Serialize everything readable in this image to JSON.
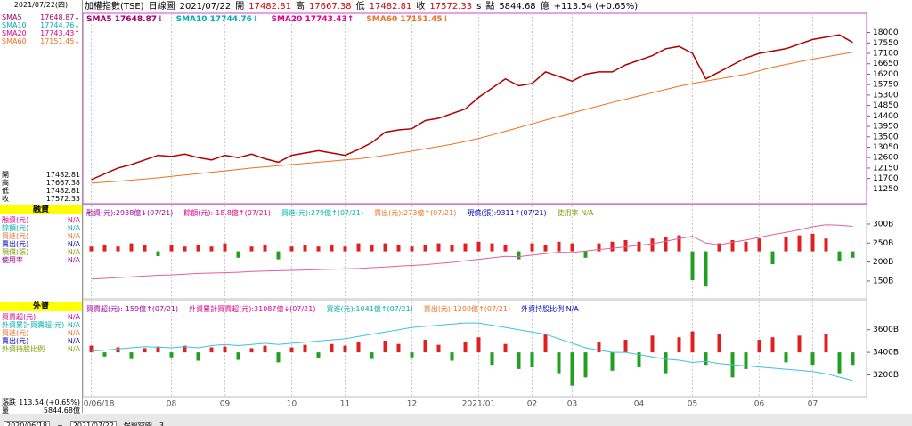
{
  "top_date": "2021/07/22(四)",
  "header": [
    {
      "text": "加權指數(TSE)",
      "color": "#000"
    },
    {
      "text": "日線圖",
      "color": "#000"
    },
    {
      "text": "2021/07/22",
      "color": "#000"
    },
    {
      "text": "開",
      "color": "#000"
    },
    {
      "text": "17482.81",
      "color": "#d00000"
    },
    {
      "text": "高",
      "color": "#000"
    },
    {
      "text": "17667.38",
      "color": "#d00000"
    },
    {
      "text": "低",
      "color": "#000"
    },
    {
      "text": "17482.81",
      "color": "#d00000"
    },
    {
      "text": "收",
      "color": "#000"
    },
    {
      "text": "17572.33",
      "color": "#d00000"
    },
    {
      "text": "s",
      "color": "#000"
    },
    {
      "text": "點",
      "color": "#000"
    },
    {
      "text": "5844.68",
      "color": "#000"
    },
    {
      "text": "億",
      "color": "#000"
    },
    {
      "text": "+113.54 (+0.65%)",
      "color": "#000"
    }
  ],
  "legend": [
    {
      "text": "SMA5 17648.87↓",
      "color": "#a0006a"
    },
    {
      "text": "SMA10 17744.76↓",
      "color": "#00b0b0"
    },
    {
      "text": "SMA20 17743.43↑",
      "color": "#e0008a"
    },
    {
      "text": "SMA60 17151.45↓",
      "color": "#f07020"
    }
  ],
  "sidebar": {
    "sma": [
      {
        "name": "SMA5",
        "value": "17648.87↓",
        "color": "#a0006a"
      },
      {
        "name": "SMA10",
        "value": "17744.76↓",
        "color": "#00b0b0"
      },
      {
        "name": "SMA20",
        "value": "17743.43↑",
        "color": "#e0008a"
      },
      {
        "name": "SMA60",
        "value": "17151.45↓",
        "color": "#f07020"
      }
    ],
    "ohlc": [
      {
        "name": "開",
        "value": "17482.81"
      },
      {
        "name": "高",
        "value": "17667.38"
      },
      {
        "name": "低",
        "value": "17482.81"
      },
      {
        "name": "收",
        "value": "17572.33"
      }
    ],
    "margin_title": "融資",
    "margin_rows": [
      {
        "name": "融資(元)",
        "value": "N/A",
        "color": "#e0008a"
      },
      {
        "name": "餘額(元)",
        "value": "N/A",
        "color": "#00b0b0"
      },
      {
        "name": "買進(元)",
        "value": "N/A",
        "color": "#f07020"
      },
      {
        "name": "賣出(元)",
        "value": "N/A",
        "color": "#0000c0"
      },
      {
        "name": "現償(張)",
        "value": "N/A",
        "color": "#80a000"
      },
      {
        "name": "使用率",
        "value": "N/A",
        "color": "#a000a0"
      }
    ],
    "foreign_title": "外資",
    "foreign_rows": [
      {
        "name": "買賣超(元)",
        "value": "N/A",
        "color": "#e0008a"
      },
      {
        "name": "外資累計買賣超(元)",
        "value": "N/A",
        "color": "#00b0b0"
      },
      {
        "name": "買進(元)",
        "value": "N/A",
        "color": "#f07020"
      },
      {
        "name": "賣出(元)",
        "value": "N/A",
        "color": "#0000c0"
      },
      {
        "name": "外資持股比例",
        "value": "N/A",
        "color": "#80a000"
      }
    ],
    "change": {
      "name": "漲跌",
      "value": "113.54 (+0.65%)"
    },
    "volume": {
      "name": "量",
      "value": "5844.68億"
    }
  },
  "panel_legends": [
    [
      "融資(元):2938億↓(07/21)",
      "餘額(元):-18.8億↑(07/21)",
      "買進(元):279億↑(07/21)",
      "賣出(元):273億↑(07/21)",
      "現償(張):9311↑(07/21)",
      "使用率 N/A"
    ],
    [
      "買賣超(元):-159億↑(07/21)",
      "外資累計買賣超(元):31087億↓(07/21)",
      "買進(元):1041億↑(07/21)",
      "賣出(元):1200億↑(07/21)",
      "外資持股比例 N/A"
    ]
  ],
  "footer": {
    "from": "2020/06/18",
    "sep": "~",
    "to": "2021/07/22",
    "label": "保留空間",
    "count": "3"
  },
  "chart_data": [
    {
      "type": "line",
      "categories": [
        "2020/06/18",
        null,
        null,
        null,
        null,
        null,
        "08",
        null,
        null,
        null,
        "09",
        null,
        null,
        null,
        null,
        "10",
        null,
        null,
        null,
        "11",
        null,
        null,
        null,
        null,
        "12",
        null,
        null,
        null,
        null,
        "2021/01",
        null,
        null,
        null,
        "02",
        null,
        null,
        "03",
        null,
        null,
        null,
        null,
        "04",
        null,
        null,
        null,
        "05",
        null,
        null,
        null,
        null,
        "06",
        null,
        null,
        null,
        "07",
        null,
        null,
        null
      ],
      "series": [
        {
          "name": "收",
          "color": "#b00000",
          "values": [
            11650,
            11900,
            12150,
            12300,
            12500,
            12700,
            12650,
            12750,
            12600,
            12500,
            12700,
            12600,
            12750,
            12550,
            12400,
            12700,
            12800,
            12900,
            12800,
            12700,
            12950,
            13250,
            13700,
            13800,
            13850,
            14200,
            14300,
            14500,
            14700,
            15200,
            15600,
            16000,
            15700,
            15800,
            16300,
            16100,
            15900,
            16200,
            16300,
            16300,
            16600,
            16800,
            17000,
            17300,
            17400,
            17100,
            16000,
            16300,
            16600,
            16900,
            17100,
            17200,
            17300,
            17500,
            17700,
            17800,
            17900,
            17570
          ]
        },
        {
          "name": "SMA60",
          "color": "#f07020",
          "values": [
            11500,
            11540,
            11580,
            11630,
            11680,
            11730,
            11790,
            11850,
            11910,
            11970,
            12030,
            12090,
            12150,
            12200,
            12250,
            12300,
            12350,
            12400,
            12450,
            12500,
            12550,
            12620,
            12700,
            12790,
            12880,
            12980,
            13080,
            13180,
            13300,
            13430,
            13580,
            13740,
            13900,
            14060,
            14220,
            14380,
            14530,
            14680,
            14830,
            14980,
            15120,
            15260,
            15400,
            15540,
            15680,
            15800,
            15900,
            16000,
            16100,
            16200,
            16350,
            16500,
            16620,
            16740,
            16850,
            16950,
            17050,
            17150
          ]
        }
      ],
      "ylim": [
        10650,
        18560
      ],
      "yticks": [
        18000,
        17550,
        17100,
        16650,
        16200,
        15750,
        15300,
        14850,
        14400,
        13950,
        13500,
        13050,
        12600,
        12150,
        11700,
        11250
      ]
    },
    {
      "type": "combo",
      "series": [
        {
          "type": "bar",
          "axis": "y2",
          "color": "#e02020",
          "negative_color": "#20a020",
          "values": [
            3,
            4,
            3,
            5,
            4,
            -3,
            4,
            3,
            4,
            3,
            5,
            -4,
            3,
            4,
            -5,
            3,
            4,
            3,
            4,
            3,
            5,
            4,
            5,
            4,
            3,
            4,
            5,
            4,
            5,
            6,
            5,
            4,
            -5,
            5,
            4,
            6,
            5,
            -4,
            5,
            6,
            7,
            6,
            8,
            9,
            10,
            -18,
            -22,
            5,
            7,
            6,
            8,
            -8,
            9,
            10,
            11,
            8,
            -6,
            -4
          ]
        },
        {
          "type": "line",
          "color": "#e060a0",
          "values": [
            155,
            157,
            159,
            161,
            163,
            165,
            166,
            168,
            170,
            171,
            172,
            173,
            175,
            176,
            177,
            178,
            179,
            180,
            181,
            182,
            183,
            185,
            187,
            189,
            191,
            193,
            196,
            199,
            203,
            207,
            211,
            215,
            214,
            218,
            222,
            226,
            225,
            229,
            233,
            236,
            240,
            244,
            248,
            255,
            262,
            268,
            250,
            245,
            252,
            258,
            265,
            272,
            278,
            285,
            293,
            298,
            297,
            294
          ]
        }
      ],
      "ylim": [
        110,
        321
      ],
      "y2lim": [
        -28,
        22
      ],
      "yticks": [
        {
          "value": 300,
          "label": "300B"
        },
        {
          "value": 250,
          "label": "250B"
        },
        {
          "value": 200,
          "label": "200B"
        },
        {
          "value": 150,
          "label": "150B"
        }
      ]
    },
    {
      "type": "combo",
      "series": [
        {
          "type": "bar",
          "axis": "y2",
          "color": "#e02020",
          "negative_color": "#20a020",
          "values": [
            8,
            -5,
            6,
            -8,
            5,
            7,
            -6,
            8,
            -10,
            6,
            7,
            -9,
            5,
            8,
            -12,
            6,
            9,
            -7,
            10,
            8,
            12,
            -8,
            14,
            10,
            -6,
            15,
            9,
            -10,
            12,
            18,
            -15,
            10,
            -20,
            -18,
            22,
            -25,
            -40,
            -30,
            12,
            -22,
            15,
            -18,
            20,
            -25,
            18,
            25,
            -15,
            22,
            -30,
            -20,
            15,
            18,
            -12,
            20,
            -15,
            22,
            -25,
            -15
          ]
        },
        {
          "type": "line",
          "color": "#40c0e0",
          "values": [
            3410,
            3420,
            3430,
            3440,
            3450,
            3445,
            3440,
            3450,
            3440,
            3460,
            3470,
            3460,
            3470,
            3480,
            3470,
            3480,
            3490,
            3500,
            3510,
            3520,
            3540,
            3560,
            3580,
            3600,
            3620,
            3630,
            3640,
            3650,
            3660,
            3660,
            3640,
            3620,
            3600,
            3580,
            3560,
            3520,
            3480,
            3440,
            3420,
            3400,
            3400,
            3380,
            3360,
            3340,
            3330,
            3310,
            3320,
            3300,
            3290,
            3280,
            3270,
            3260,
            3250,
            3240,
            3230,
            3210,
            3180,
            3150
          ]
        }
      ],
      "ylim": [
        3015,
        3755
      ],
      "y2lim": [
        -52,
        48
      ],
      "yticks": [
        {
          "value": 3600,
          "label": "3600B"
        },
        {
          "value": 3400,
          "label": "3400B"
        },
        {
          "value": 3200,
          "label": "3200B"
        }
      ]
    }
  ]
}
